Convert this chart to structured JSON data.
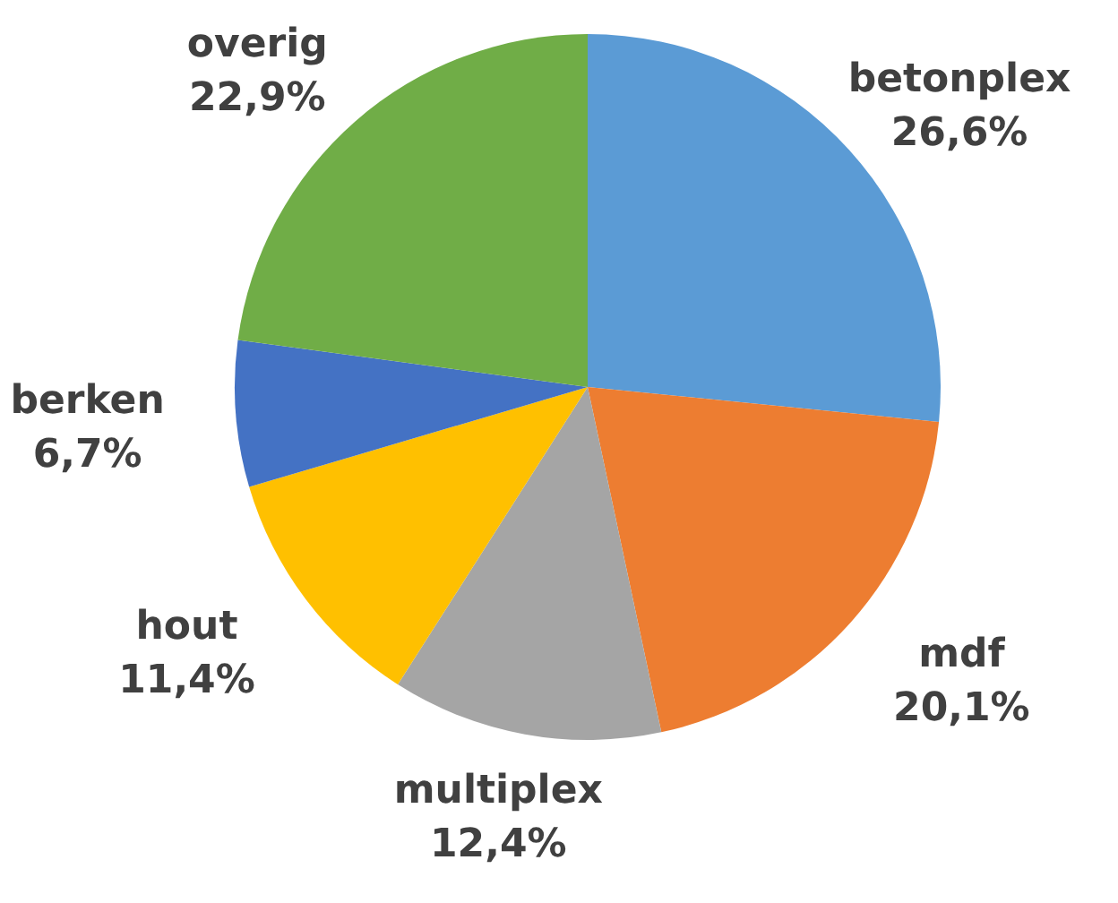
{
  "chart_data": {
    "type": "pie",
    "categories": [
      "betonplex",
      "mdf",
      "multiplex",
      "hout",
      "berken",
      "overig"
    ],
    "values": [
      26.6,
      20.1,
      12.4,
      11.4,
      6.7,
      22.9
    ],
    "colors": [
      "#5b9bd5",
      "#ed7d31",
      "#a5a5a5",
      "#ffc000",
      "#4472c4",
      "#70ad47"
    ],
    "value_labels": [
      "26,6%",
      "20,1%",
      "12,4%",
      "11,4%",
      "6,7%",
      "22,9%"
    ],
    "legend": false
  }
}
